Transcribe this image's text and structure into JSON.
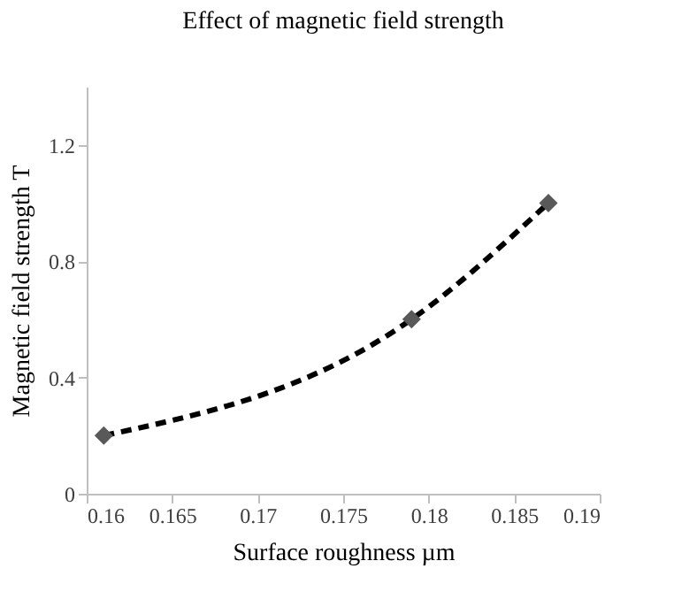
{
  "chart_data": {
    "type": "line",
    "title": "Effect of magnetic field strength",
    "xlabel": "Surface roughness µm",
    "ylabel": "Magnetic field strength T",
    "x": [
      0.161,
      0.179,
      0.187
    ],
    "series": [
      {
        "color": "#000000",
        "values": [
          0.2,
          0.6,
          1.0
        ],
        "line_style": "dashed",
        "marker": "none"
      },
      {
        "type": "scatter",
        "color": "#595959",
        "values": [
          0.2,
          0.6,
          1.0
        ],
        "marker": "diamond"
      }
    ],
    "grid": false,
    "xlim": [
      0.16,
      0.19
    ],
    "xticks": [
      0.16,
      0.165,
      0.17,
      0.175,
      0.18,
      0.185,
      0.19
    ],
    "ylim": [
      0,
      1.4
    ],
    "yticks": [
      0,
      0.4,
      0.8,
      1.2
    ]
  }
}
